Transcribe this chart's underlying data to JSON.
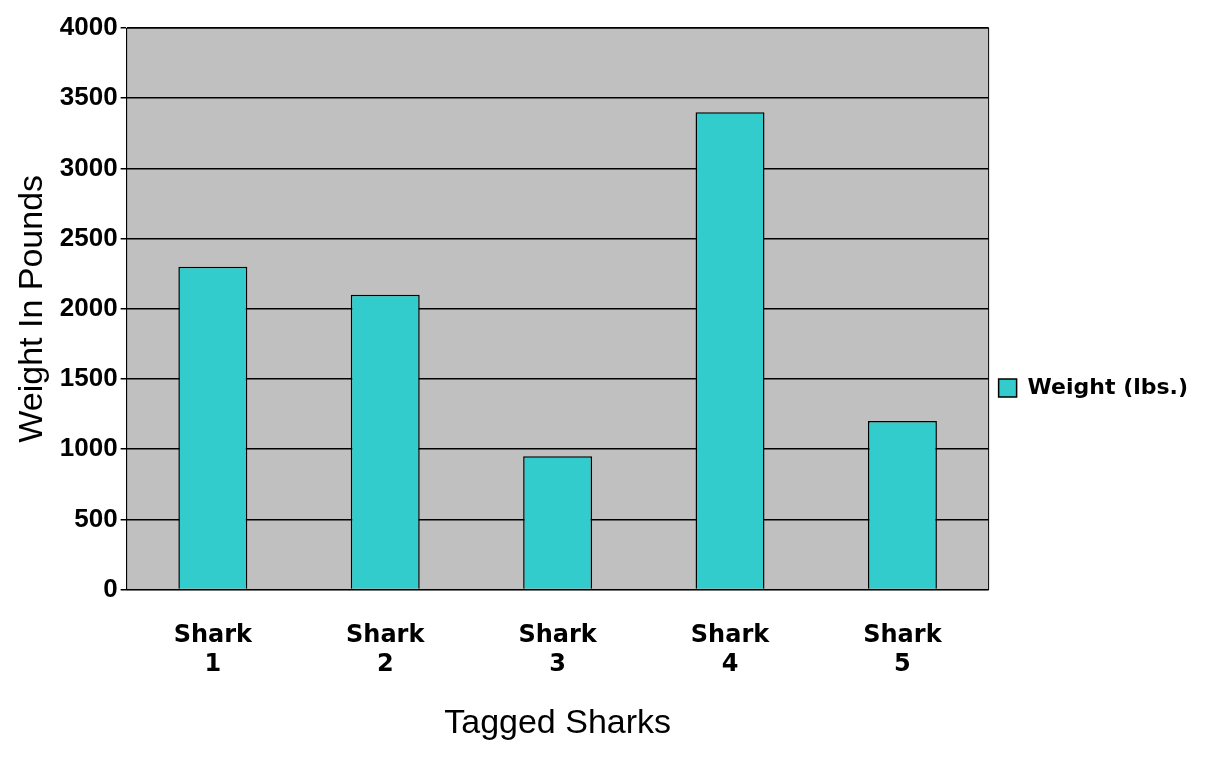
{
  "chart_data": {
    "type": "bar",
    "xlabel": "Tagged Sharks",
    "ylabel": "Weight In Pounds",
    "categories": [
      "Shark 1",
      "Shark 2",
      "Shark 3",
      "Shark 4",
      "Shark 5"
    ],
    "series": [
      {
        "name": "Weight (lbs.)",
        "color": "#33cccc",
        "values": [
          2300,
          2100,
          950,
          3400,
          1200
        ]
      }
    ],
    "ylim": [
      0,
      4000
    ],
    "yticks": [
      0,
      500,
      1000,
      1500,
      2000,
      2500,
      3000,
      3500,
      4000
    ],
    "grid": "y",
    "legend": "right"
  }
}
